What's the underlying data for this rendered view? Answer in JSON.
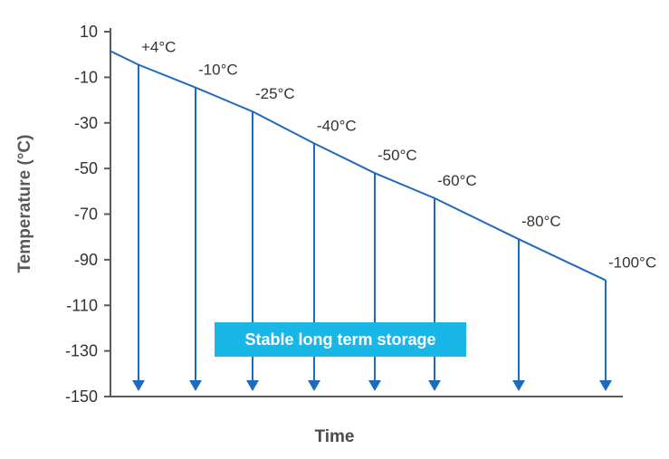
{
  "chart_data": {
    "type": "line",
    "xlabel": "Time",
    "ylabel": "Temperature (°C)",
    "ylim": [
      -150,
      10
    ],
    "yticks": [
      10,
      -10,
      -30,
      -50,
      -70,
      -90,
      -110,
      -130,
      -150
    ],
    "grid": false,
    "series": [
      {
        "values": [
          1.5,
          -4.5,
          -14.5,
          -25,
          -39,
          -52,
          -63,
          -81,
          -99
        ]
      }
    ],
    "x": [
      0,
      1,
      2,
      3,
      4,
      5,
      6,
      7,
      8
    ],
    "storage_points": [
      {
        "x": 1,
        "y": -4.5,
        "label": "+4°C"
      },
      {
        "x": 2,
        "y": -14.5,
        "label": "-10°C"
      },
      {
        "x": 3,
        "y": -25,
        "label": "-25°C"
      },
      {
        "x": 4,
        "y": -39,
        "label": "-40°C"
      },
      {
        "x": 5,
        "y": -52,
        "label": "-50°C"
      },
      {
        "x": 6,
        "y": -63,
        "label": "-60°C"
      },
      {
        "x": 7,
        "y": -81,
        "label": "-80°C"
      },
      {
        "x": 8,
        "y": -99,
        "label": "-100°C"
      }
    ],
    "annotation": "Stable long term storage",
    "colors": {
      "line": "#1e6bbd",
      "axis": "#5a5a5a",
      "callout_bg": "#19b6e8",
      "callout_text": "#ffffff"
    }
  }
}
